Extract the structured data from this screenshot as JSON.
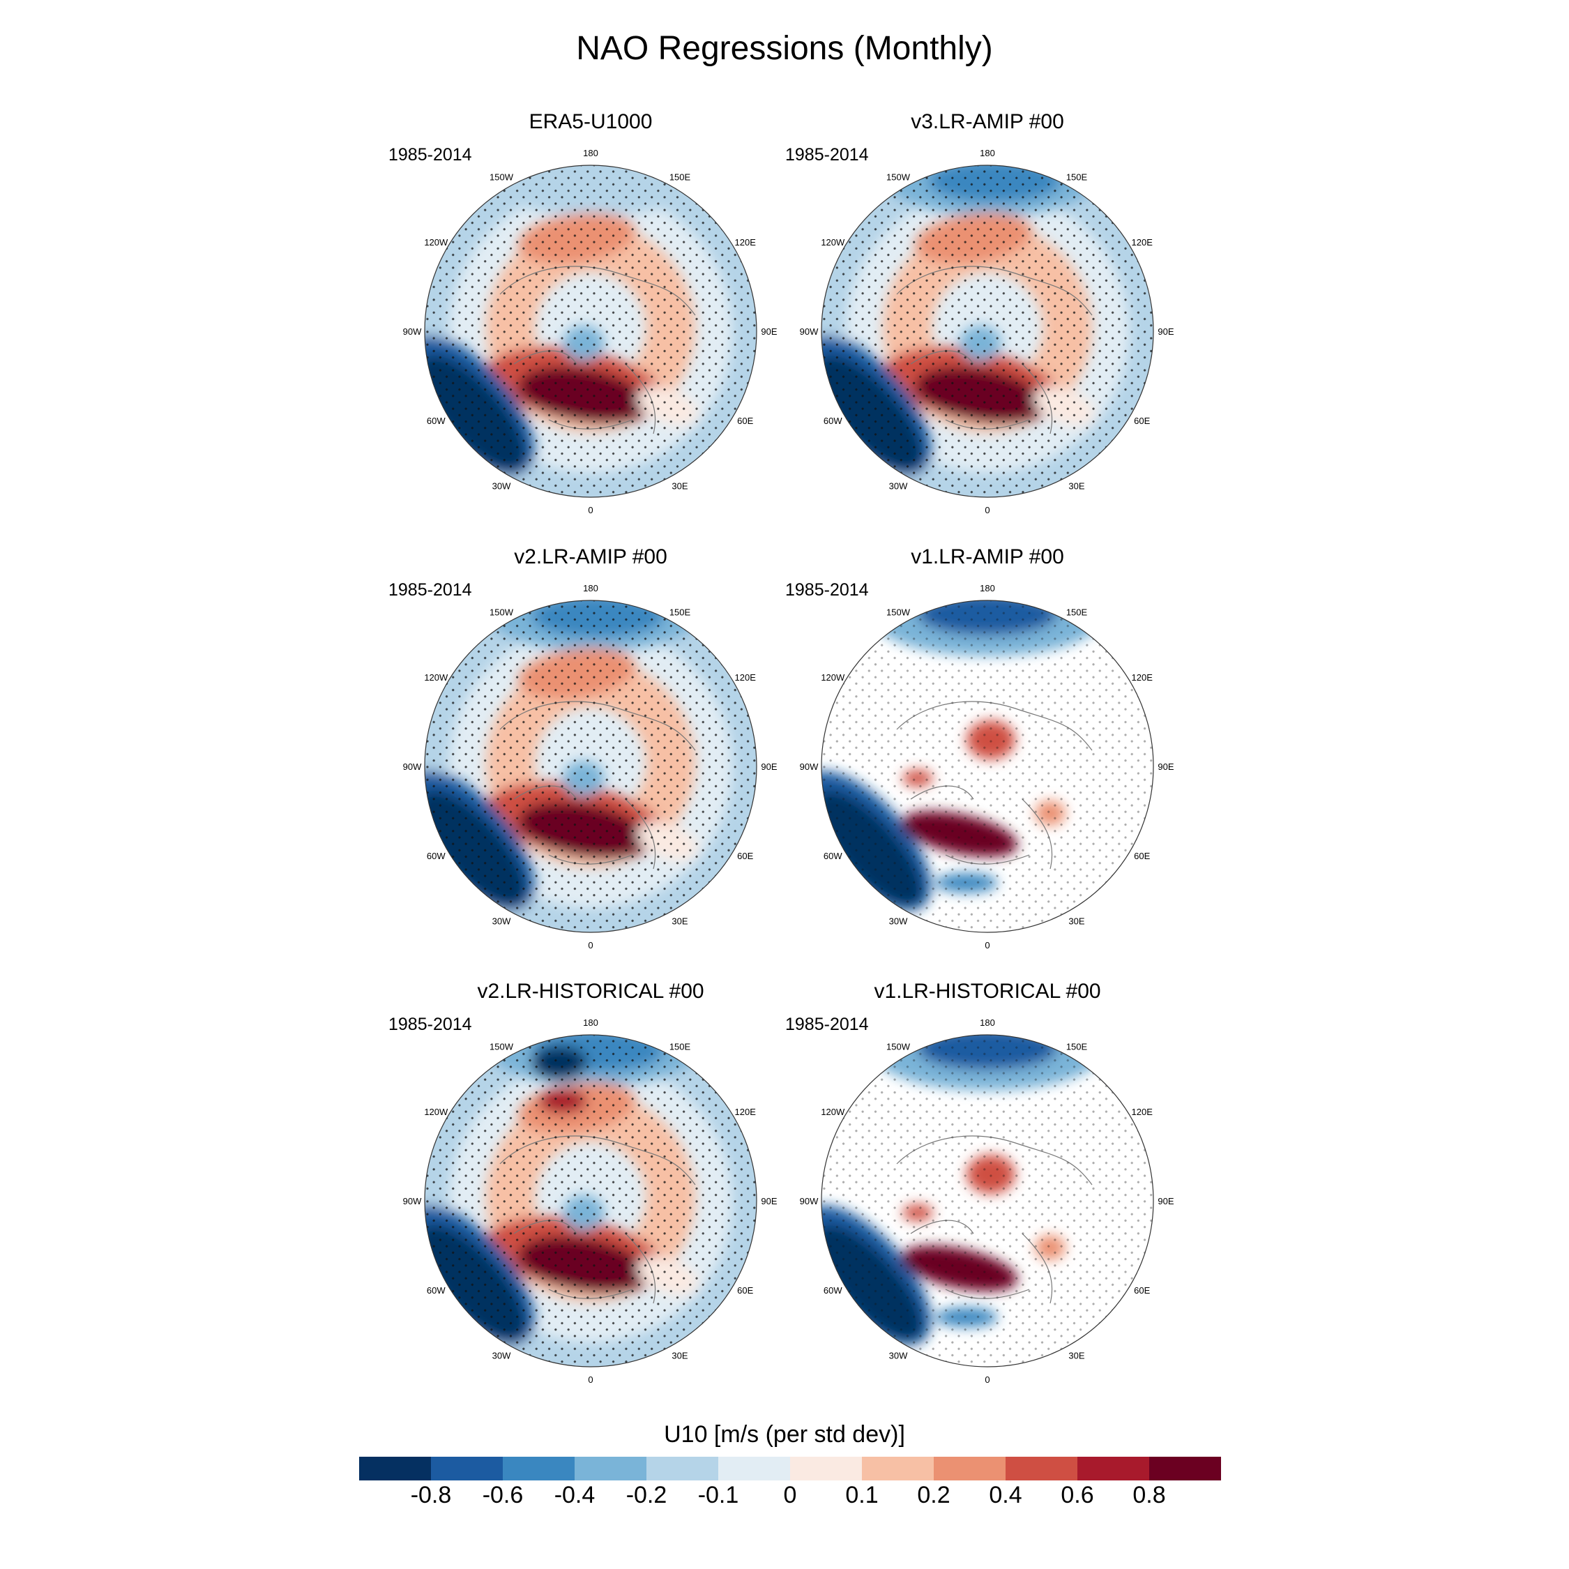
{
  "figure": {
    "title": "NAO Regressions (Monthly)"
  },
  "panels": [
    {
      "title": "ERA5-U1000",
      "period": "1985-2014",
      "style": "obs"
    },
    {
      "title": "v3.LR-AMIP  #00",
      "period": "1985-2014",
      "style": "full"
    },
    {
      "title": "v2.LR-AMIP  #00",
      "period": "1985-2014",
      "style": "full"
    },
    {
      "title": "v1.LR-AMIP  #00",
      "period": "1985-2014",
      "style": "masked"
    },
    {
      "title": "v2.LR-HISTORICAL  #00",
      "period": "1985-2014",
      "style": "full2"
    },
    {
      "title": "v1.LR-HISTORICAL  #00",
      "period": "1985-2014",
      "style": "masked"
    }
  ],
  "map_labels": {
    "lon_180": "180",
    "lon_150W": "150W",
    "lon_150E": "150E",
    "lon_120W": "120W",
    "lon_120E": "120E",
    "lon_90W": "90W",
    "lon_90E": "90E",
    "lon_60W": "60W",
    "lon_60E": "60E",
    "lon_30W": "30W",
    "lon_30E": "30E",
    "lon_0": "0"
  },
  "colorbar": {
    "title": "U10 [m/s (per std dev)]",
    "colors": [
      "#053061",
      "#1c5ba1",
      "#3a87c0",
      "#7ab4d8",
      "#b5d4e8",
      "#e2edf4",
      "#faeae2",
      "#f7c0a5",
      "#eb9172",
      "#cf4f43",
      "#a81a2c",
      "#6b0021"
    ],
    "ticks": [
      "-0.8",
      "-0.6",
      "-0.4",
      "-0.2",
      "-0.1",
      "0",
      "0.1",
      "0.2",
      "0.4",
      "0.6",
      "0.8"
    ]
  }
}
